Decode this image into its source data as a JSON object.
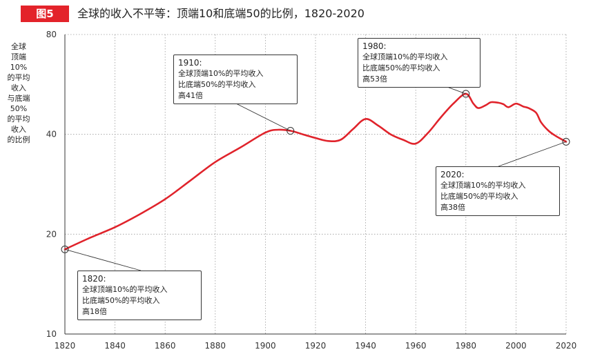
{
  "figure": {
    "badge": "图5",
    "title": "全球的收入不平等：顶端10和底端50的比例，1820-2020"
  },
  "ylabel_lines": [
    "全球",
    "顶端",
    "10%",
    "的平均",
    "收入",
    "与底端",
    "50%",
    "的平均",
    "收入",
    "的比例"
  ],
  "annotations": [
    {
      "year": "1820:",
      "l1": "全球顶端10%的平均收入",
      "l2": "比底端50%的平均收入",
      "l3": "高18倍"
    },
    {
      "year": "1910:",
      "l1": "全球顶端10%的平均收入",
      "l2": "比底端50%的平均收入",
      "l3": "高41倍"
    },
    {
      "year": "1980:",
      "l1": "全球顶端10%的平均收入",
      "l2": "比底端50%的平均收入",
      "l3": "高53倍"
    },
    {
      "year": "2020:",
      "l1": "全球顶端10%的平均收入",
      "l2": "比底端50%的平均收入",
      "l3": "高38倍"
    }
  ],
  "chart_data": {
    "type": "line",
    "title": "全球的收入不平等：顶端10和底端50的比例，1820-2020",
    "ylabel": "全球顶端10%的平均收入与底端50%的平均收入的比例",
    "xlabel": "",
    "y_scale": "log",
    "xlim": [
      1820,
      2020
    ],
    "ylim": [
      10,
      80
    ],
    "x_ticks": [
      1820,
      1840,
      1860,
      1880,
      1900,
      1920,
      1940,
      1960,
      1980,
      2000,
      2020
    ],
    "y_ticks": [
      10,
      20,
      40,
      80
    ],
    "grid": true,
    "line_color": "#e0232b",
    "series": [
      {
        "x": [
          1820,
          1830,
          1840,
          1850,
          1860,
          1870,
          1880,
          1890,
          1900,
          1905,
          1910,
          1915,
          1920,
          1925,
          1930,
          1935,
          1940,
          1945,
          1950,
          1955,
          1960,
          1965,
          1970,
          1975,
          1980,
          1983,
          1985,
          1988,
          1990,
          1993,
          1995,
          1997,
          2000,
          2003,
          2005,
          2008,
          2010,
          2013,
          2016,
          2020
        ],
        "y": [
          18,
          19.5,
          21,
          23,
          25.5,
          29,
          33,
          36.5,
          40.5,
          41.3,
          41,
          40,
          39,
          38.2,
          38.5,
          41.5,
          44.5,
          42.5,
          40,
          38.5,
          37.5,
          40.5,
          45,
          49.5,
          53,
          49.5,
          48,
          49,
          50,
          49.8,
          49.3,
          48.3,
          49.5,
          48.5,
          48,
          46.5,
          43.5,
          41,
          39.5,
          38
        ]
      }
    ],
    "highlighted_points": [
      {
        "x": 1820,
        "y": 18
      },
      {
        "x": 1910,
        "y": 41
      },
      {
        "x": 1980,
        "y": 53
      },
      {
        "x": 2020,
        "y": 38
      }
    ]
  }
}
